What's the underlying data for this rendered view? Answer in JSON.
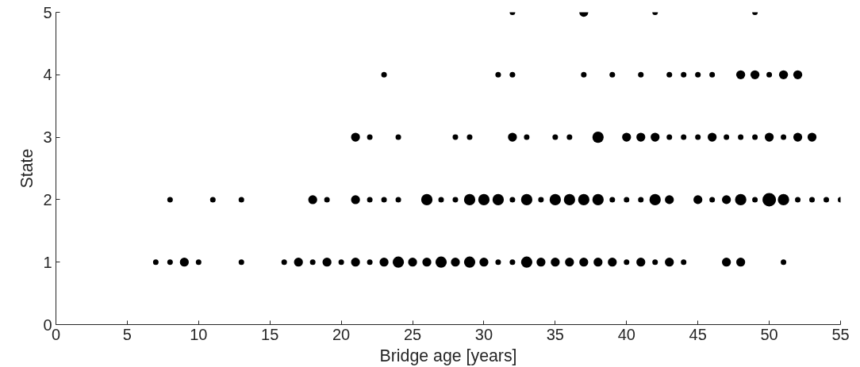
{
  "chart_data": {
    "type": "bubble",
    "xlabel": "Bridge age [years]",
    "ylabel": "State",
    "x": [
      7,
      8,
      9,
      10,
      13,
      16,
      17,
      18,
      19,
      20,
      21,
      22,
      23,
      24,
      25,
      26,
      27,
      28,
      29,
      30,
      31,
      32,
      33,
      34,
      35,
      36,
      37,
      38,
      39,
      40,
      41,
      42,
      43,
      44,
      47,
      48,
      51,
      8,
      11,
      13,
      18,
      19,
      21,
      22,
      23,
      24,
      26,
      27,
      28,
      29,
      30,
      31,
      32,
      33,
      34,
      35,
      36,
      37,
      38,
      39,
      40,
      41,
      42,
      43,
      45,
      46,
      47,
      48,
      49,
      50,
      51,
      52,
      53,
      54,
      55,
      21,
      22,
      24,
      28,
      29,
      32,
      33,
      35,
      36,
      38,
      40,
      41,
      42,
      43,
      44,
      45,
      46,
      47,
      48,
      49,
      50,
      51,
      52,
      53,
      23,
      31,
      32,
      37,
      39,
      41,
      43,
      44,
      45,
      46,
      48,
      49,
      50,
      51,
      52,
      32,
      37,
      42,
      49
    ],
    "values": [
      1,
      1,
      1,
      1,
      1,
      1,
      1,
      1,
      1,
      1,
      1,
      1,
      1,
      1,
      1,
      1,
      1,
      1,
      1,
      1,
      1,
      1,
      1,
      1,
      1,
      1,
      1,
      1,
      1,
      1,
      1,
      1,
      1,
      1,
      1,
      1,
      1,
      2,
      2,
      2,
      2,
      2,
      2,
      2,
      2,
      2,
      2,
      2,
      2,
      2,
      2,
      2,
      2,
      2,
      2,
      2,
      2,
      2,
      2,
      2,
      2,
      2,
      2,
      2,
      2,
      2,
      2,
      2,
      2,
      2,
      2,
      2,
      2,
      2,
      2,
      3,
      3,
      3,
      3,
      3,
      3,
      3,
      3,
      3,
      3,
      3,
      3,
      3,
      3,
      3,
      3,
      3,
      3,
      3,
      3,
      3,
      3,
      3,
      3,
      4,
      4,
      4,
      4,
      4,
      4,
      4,
      4,
      4,
      4,
      4,
      4,
      4,
      4,
      4,
      5,
      5,
      5,
      5
    ],
    "sizes": [
      0.17,
      0.17,
      0.44,
      0.17,
      0.17,
      0.17,
      0.44,
      0.17,
      0.44,
      0.17,
      0.44,
      0.17,
      0.44,
      0.7,
      0.44,
      0.44,
      0.7,
      0.44,
      0.7,
      0.44,
      0.17,
      0.17,
      0.7,
      0.44,
      0.44,
      0.44,
      0.44,
      0.44,
      0.44,
      0.17,
      0.44,
      0.17,
      0.44,
      0.17,
      0.44,
      0.44,
      0.17,
      0.17,
      0.17,
      0.17,
      0.44,
      0.17,
      0.44,
      0.17,
      0.17,
      0.17,
      0.7,
      0.17,
      0.17,
      0.7,
      0.7,
      0.7,
      0.17,
      0.7,
      0.17,
      0.7,
      0.7,
      0.7,
      0.7,
      0.17,
      0.17,
      0.17,
      0.7,
      0.44,
      0.44,
      0.17,
      0.44,
      0.7,
      0.17,
      1,
      0.7,
      0.17,
      0.17,
      0.17,
      0.17,
      0.44,
      0.17,
      0.17,
      0.17,
      0.17,
      0.44,
      0.17,
      0.17,
      0.17,
      0.7,
      0.44,
      0.44,
      0.44,
      0.17,
      0.17,
      0.17,
      0.44,
      0.17,
      0.17,
      0.17,
      0.44,
      0.17,
      0.44,
      0.44,
      0.17,
      0.17,
      0.17,
      0.17,
      0.17,
      0.17,
      0.17,
      0.17,
      0.17,
      0.17,
      0.44,
      0.44,
      0.17,
      0.44,
      0.44,
      0.17,
      0.44,
      0.17,
      0.17
    ],
    "color": "#000000",
    "marker": "circle",
    "grid": false,
    "xlim": [
      0,
      55
    ],
    "ylim": [
      0,
      5
    ],
    "xticks": [
      0,
      5,
      10,
      15,
      20,
      25,
      30,
      35,
      40,
      45,
      50,
      55
    ],
    "yticks": [
      0,
      1,
      2,
      3,
      4,
      5
    ]
  }
}
